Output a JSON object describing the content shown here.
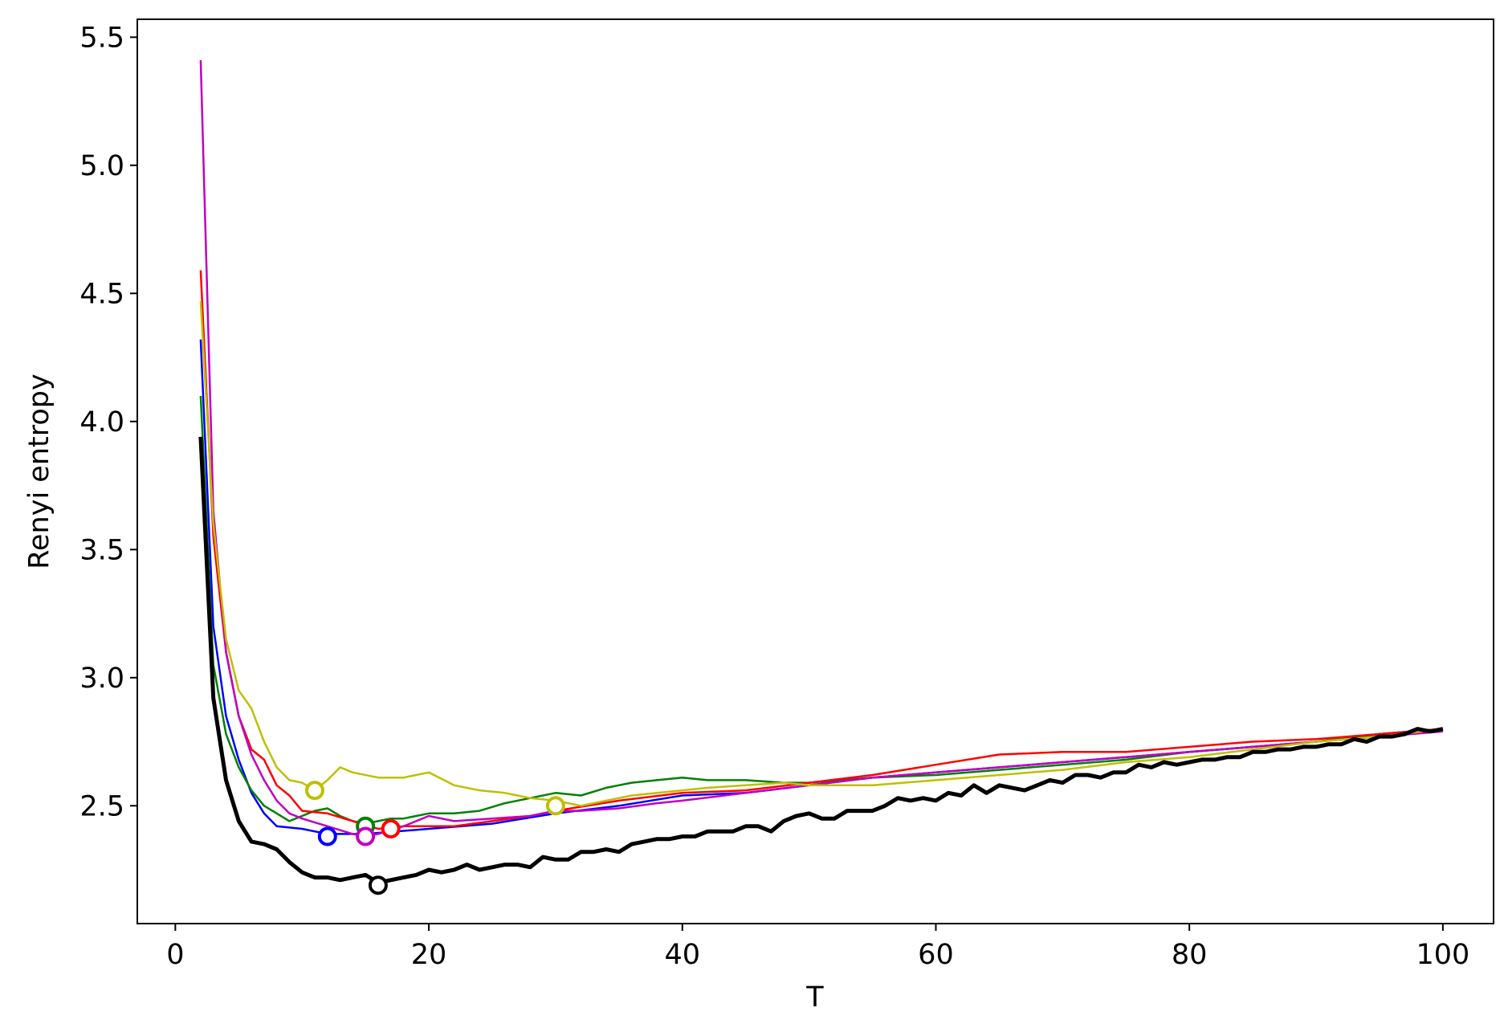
{
  "chart_data": {
    "type": "line",
    "title": "",
    "xlabel": "T",
    "ylabel": "Renyi entropy",
    "xlim": [
      -3,
      104
    ],
    "ylim": [
      2.04,
      5.57
    ],
    "xticks": [
      0,
      20,
      40,
      60,
      80,
      100
    ],
    "xtick_labels": [
      "0",
      "20",
      "40",
      "60",
      "80",
      "100"
    ],
    "yticks": [
      2.5,
      3.0,
      3.5,
      4.0,
      4.5,
      5.0,
      5.5
    ],
    "ytick_labels": [
      "2.5",
      "3.0",
      "3.5",
      "4.0",
      "4.5",
      "5.0",
      "5.5"
    ],
    "grid": false,
    "legend": "none",
    "series": [
      {
        "color": "#0000ff",
        "linewidth": 2.5,
        "x": [
          2,
          3,
          4,
          5,
          6,
          7,
          8,
          10,
          12,
          15,
          20,
          25,
          30,
          35,
          40,
          45,
          50,
          55,
          60,
          65,
          70,
          75,
          80,
          85,
          90,
          95,
          100
        ],
        "y": [
          4.32,
          3.2,
          2.85,
          2.68,
          2.55,
          2.47,
          2.42,
          2.41,
          2.39,
          2.39,
          2.41,
          2.43,
          2.47,
          2.5,
          2.54,
          2.55,
          2.58,
          2.61,
          2.63,
          2.65,
          2.67,
          2.69,
          2.71,
          2.73,
          2.75,
          2.78,
          2.8
        ],
        "marker": {
          "x": 12,
          "y": 2.38
        }
      },
      {
        "color": "#008000",
        "linewidth": 2.5,
        "x": [
          2,
          3,
          4,
          5,
          6,
          7,
          8,
          9,
          10,
          11,
          12,
          13,
          14,
          15,
          16,
          17,
          18,
          20,
          22,
          24,
          26,
          28,
          30,
          32,
          34,
          36,
          38,
          40,
          42,
          45,
          48,
          50,
          55,
          60,
          65,
          70,
          75,
          80,
          85,
          90,
          95,
          100
        ],
        "y": [
          4.1,
          3.05,
          2.78,
          2.65,
          2.56,
          2.5,
          2.47,
          2.44,
          2.46,
          2.48,
          2.49,
          2.46,
          2.44,
          2.43,
          2.44,
          2.45,
          2.45,
          2.47,
          2.47,
          2.48,
          2.51,
          2.53,
          2.55,
          2.54,
          2.57,
          2.59,
          2.6,
          2.61,
          2.6,
          2.6,
          2.59,
          2.59,
          2.61,
          2.62,
          2.64,
          2.66,
          2.68,
          2.71,
          2.73,
          2.75,
          2.78,
          2.8
        ],
        "marker": {
          "x": 15,
          "y": 2.42
        }
      },
      {
        "color": "#ff0000",
        "linewidth": 2.5,
        "x": [
          2,
          3,
          4,
          5,
          6,
          7,
          8,
          9,
          10,
          12,
          14,
          16,
          18,
          20,
          22,
          25,
          28,
          30,
          35,
          40,
          45,
          50,
          55,
          60,
          65,
          70,
          75,
          80,
          85,
          90,
          95,
          100
        ],
        "y": [
          4.59,
          3.55,
          3.1,
          2.85,
          2.72,
          2.68,
          2.58,
          2.54,
          2.48,
          2.47,
          2.44,
          2.41,
          2.42,
          2.42,
          2.42,
          2.44,
          2.46,
          2.48,
          2.52,
          2.55,
          2.56,
          2.59,
          2.62,
          2.66,
          2.7,
          2.71,
          2.71,
          2.73,
          2.75,
          2.76,
          2.78,
          2.8
        ],
        "marker": {
          "x": 17,
          "y": 2.41
        }
      },
      {
        "color": "#c000c0",
        "linewidth": 2.5,
        "x": [
          2,
          3,
          4,
          5,
          6,
          7,
          8,
          9,
          10,
          12,
          14,
          15,
          16,
          18,
          20,
          22,
          25,
          28,
          30,
          32,
          35,
          38,
          40,
          45,
          50,
          55,
          60,
          65,
          70,
          75,
          80,
          85,
          90,
          95,
          100
        ],
        "y": [
          5.41,
          3.65,
          3.1,
          2.85,
          2.7,
          2.6,
          2.52,
          2.47,
          2.45,
          2.42,
          2.39,
          2.38,
          2.39,
          2.42,
          2.46,
          2.44,
          2.45,
          2.46,
          2.48,
          2.48,
          2.49,
          2.51,
          2.52,
          2.55,
          2.58,
          2.61,
          2.63,
          2.65,
          2.67,
          2.69,
          2.71,
          2.73,
          2.75,
          2.77,
          2.79
        ],
        "marker": {
          "x": 15,
          "y": 2.38
        }
      },
      {
        "color": "#bfbf00",
        "linewidth": 2.5,
        "x": [
          2,
          3,
          4,
          5,
          6,
          7,
          8,
          9,
          10,
          11,
          12,
          13,
          14,
          16,
          18,
          20,
          22,
          24,
          26,
          28,
          30,
          32,
          34,
          36,
          38,
          40,
          42,
          45,
          48,
          50,
          55,
          60,
          65,
          70,
          75,
          80,
          85,
          90,
          95,
          100
        ],
        "y": [
          4.47,
          3.6,
          3.15,
          2.95,
          2.88,
          2.75,
          2.65,
          2.6,
          2.59,
          2.56,
          2.6,
          2.65,
          2.63,
          2.61,
          2.61,
          2.63,
          2.58,
          2.56,
          2.55,
          2.53,
          2.52,
          2.5,
          2.52,
          2.54,
          2.55,
          2.56,
          2.57,
          2.58,
          2.59,
          2.58,
          2.58,
          2.6,
          2.62,
          2.64,
          2.67,
          2.69,
          2.72,
          2.75,
          2.77,
          2.8
        ],
        "marker": {
          "x": 30,
          "y": 2.5
        },
        "marker2": {
          "x": 11,
          "y": 2.56
        }
      },
      {
        "color": "#000000",
        "linewidth": 5,
        "x": [
          2,
          3,
          4,
          5,
          6,
          7,
          8,
          9,
          10,
          11,
          12,
          13,
          14,
          15,
          16,
          17,
          18,
          19,
          20,
          21,
          22,
          23,
          24,
          25,
          26,
          27,
          28,
          29,
          30,
          31,
          32,
          33,
          34,
          35,
          36,
          37,
          38,
          39,
          40,
          41,
          42,
          43,
          44,
          45,
          46,
          47,
          48,
          49,
          50,
          51,
          52,
          53,
          54,
          55,
          56,
          57,
          58,
          59,
          60,
          61,
          62,
          63,
          64,
          65,
          66,
          67,
          68,
          69,
          70,
          71,
          72,
          73,
          74,
          75,
          76,
          77,
          78,
          79,
          80,
          81,
          82,
          83,
          84,
          85,
          86,
          87,
          88,
          89,
          90,
          91,
          92,
          93,
          94,
          95,
          96,
          97,
          98,
          99,
          100
        ],
        "y": [
          3.94,
          2.92,
          2.6,
          2.44,
          2.36,
          2.35,
          2.33,
          2.28,
          2.24,
          2.22,
          2.22,
          2.21,
          2.22,
          2.23,
          2.2,
          2.21,
          2.22,
          2.23,
          2.25,
          2.24,
          2.25,
          2.27,
          2.25,
          2.26,
          2.27,
          2.27,
          2.26,
          2.3,
          2.29,
          2.29,
          2.32,
          2.32,
          2.33,
          2.32,
          2.35,
          2.36,
          2.37,
          2.37,
          2.38,
          2.38,
          2.4,
          2.4,
          2.4,
          2.42,
          2.42,
          2.4,
          2.44,
          2.46,
          2.47,
          2.45,
          2.45,
          2.48,
          2.48,
          2.48,
          2.5,
          2.53,
          2.52,
          2.53,
          2.52,
          2.55,
          2.54,
          2.58,
          2.55,
          2.58,
          2.57,
          2.56,
          2.58,
          2.6,
          2.59,
          2.62,
          2.62,
          2.61,
          2.63,
          2.63,
          2.66,
          2.65,
          2.67,
          2.66,
          2.67,
          2.68,
          2.68,
          2.69,
          2.69,
          2.71,
          2.71,
          2.72,
          2.72,
          2.73,
          2.73,
          2.74,
          2.74,
          2.76,
          2.75,
          2.77,
          2.77,
          2.78,
          2.8,
          2.79,
          2.8
        ],
        "marker": {
          "x": 16,
          "y": 2.19
        }
      }
    ]
  }
}
